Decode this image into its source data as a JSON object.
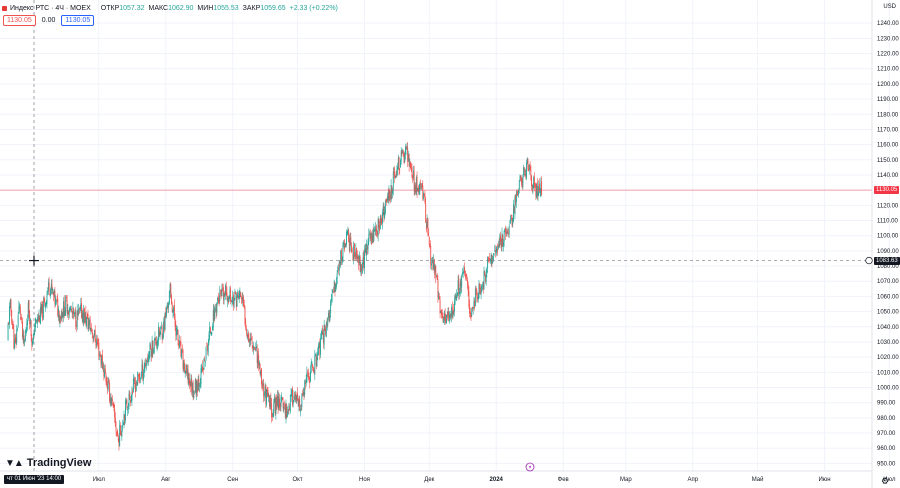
{
  "header": {
    "title": "Индекс РТС · 4Ч · MOEX",
    "open_label": "ОТКР",
    "open": "1057.32",
    "high_label": "МАКС",
    "high": "1062.90",
    "low_label": "МИН",
    "low": "1055.53",
    "close_label": "ЗАКР",
    "close": "1059.65",
    "change": "+2.33 (+0.22%)"
  },
  "quote": {
    "sell": "1130.05",
    "spread": "0.00",
    "buy": "1130.05"
  },
  "currency": "USD",
  "price_tags": {
    "last": "1130.05",
    "crosshair": "1083.63"
  },
  "crosshair_time": "чт 01 Июн '23  14:00",
  "brand": "TradingView",
  "colors": {
    "up": "#26a69a",
    "down": "#ef5350",
    "last_line": "#f23645"
  },
  "icons": {
    "crosshair": "crosshair-icon",
    "settings": "gear-icon",
    "event": "lightning-icon"
  },
  "chart_data": {
    "type": "candlestick",
    "title": "",
    "xlabel": "",
    "ylabel": "",
    "ylim": [
      945,
      1250
    ],
    "y_ticks": [
      950,
      960,
      970,
      980,
      990,
      1000,
      1010,
      1020,
      1030,
      1040,
      1050,
      1060,
      1070,
      1080,
      1090,
      1100,
      1110,
      1120,
      1130,
      1140,
      1150,
      1160,
      1170,
      1180,
      1190,
      1200,
      1210,
      1220,
      1230,
      1240
    ],
    "x_ticks": [
      "Июл",
      "Авг",
      "Сен",
      "Окт",
      "Ноя",
      "Дек",
      "2024",
      "Фев",
      "Мар",
      "Апр",
      "Май",
      "Июн",
      "Июл"
    ],
    "grid": true,
    "price_path": [
      [
        "2023-06-01",
        1040
      ],
      [
        "2023-06-05",
        1050
      ],
      [
        "2023-06-08",
        1068
      ],
      [
        "2023-06-10",
        1060
      ],
      [
        "2023-06-13",
        1048
      ],
      [
        "2023-06-16",
        1055
      ],
      [
        "2023-06-20",
        1045
      ],
      [
        "2023-06-23",
        1050
      ],
      [
        "2023-06-27",
        1040
      ],
      [
        "2023-06-30",
        1030
      ],
      [
        "2023-07-04",
        1008
      ],
      [
        "2023-07-07",
        990
      ],
      [
        "2023-07-10",
        965
      ],
      [
        "2023-07-13",
        985
      ],
      [
        "2023-07-17",
        1000
      ],
      [
        "2023-07-21",
        1010
      ],
      [
        "2023-07-25",
        1025
      ],
      [
        "2023-07-31",
        1040
      ],
      [
        "2023-08-03",
        1063
      ],
      [
        "2023-08-07",
        1028
      ],
      [
        "2023-08-10",
        1010
      ],
      [
        "2023-08-14",
        998
      ],
      [
        "2023-08-18",
        1010
      ],
      [
        "2023-08-22",
        1040
      ],
      [
        "2023-08-25",
        1058
      ],
      [
        "2023-08-29",
        1062
      ],
      [
        "2023-09-01",
        1058
      ],
      [
        "2023-09-05",
        1060
      ],
      [
        "2023-09-08",
        1035
      ],
      [
        "2023-09-12",
        1025
      ],
      [
        "2023-09-15",
        1000
      ],
      [
        "2023-09-19",
        985
      ],
      [
        "2023-09-22",
        992
      ],
      [
        "2023-09-26",
        985
      ],
      [
        "2023-09-29",
        995
      ],
      [
        "2023-10-02",
        985
      ],
      [
        "2023-10-05",
        1003
      ],
      [
        "2023-10-10",
        1020
      ],
      [
        "2023-10-16",
        1050
      ],
      [
        "2023-10-20",
        1080
      ],
      [
        "2023-10-24",
        1100
      ],
      [
        "2023-10-27",
        1088
      ],
      [
        "2023-10-31",
        1080
      ],
      [
        "2023-11-03",
        1098
      ],
      [
        "2023-11-07",
        1105
      ],
      [
        "2023-11-10",
        1115
      ],
      [
        "2023-11-14",
        1135
      ],
      [
        "2023-11-17",
        1148
      ],
      [
        "2023-11-20",
        1155
      ],
      [
        "2023-11-22",
        1150
      ],
      [
        "2023-11-24",
        1135
      ],
      [
        "2023-11-28",
        1130
      ],
      [
        "2023-11-30",
        1105
      ],
      [
        "2023-12-01",
        1090
      ],
      [
        "2023-12-04",
        1075
      ],
      [
        "2023-12-06",
        1050
      ],
      [
        "2023-12-08",
        1045
      ],
      [
        "2023-12-12",
        1050
      ],
      [
        "2023-12-14",
        1065
      ],
      [
        "2023-12-18",
        1075
      ],
      [
        "2023-12-20",
        1050
      ],
      [
        "2023-12-22",
        1058
      ],
      [
        "2023-12-26",
        1070
      ],
      [
        "2023-12-29",
        1085
      ],
      [
        "2024-01-03",
        1095
      ],
      [
        "2024-01-08",
        1110
      ],
      [
        "2024-01-11",
        1130
      ],
      [
        "2024-01-15",
        1145
      ],
      [
        "2024-01-17",
        1140
      ],
      [
        "2024-01-19",
        1132
      ],
      [
        "2024-01-22",
        1130
      ]
    ]
  }
}
